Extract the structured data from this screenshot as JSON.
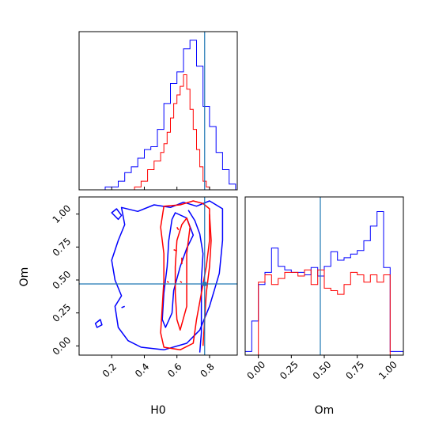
{
  "colors": {
    "series_a": "#0000ff",
    "series_b": "#ff0000",
    "truth": "#1f77b4",
    "frame": "#000000"
  },
  "chart_data": [
    {
      "type": "histogram",
      "panel": "top-left",
      "xlim": [
        0.0,
        0.97
      ],
      "ylim": [
        0,
        55
      ],
      "truth_x": 0.77,
      "series": [
        {
          "color_key": "series_a",
          "bin_edges": [
            0.16,
            0.2,
            0.24,
            0.28,
            0.32,
            0.36,
            0.4,
            0.44,
            0.48,
            0.52,
            0.56,
            0.6,
            0.64,
            0.68,
            0.72,
            0.76,
            0.8,
            0.84,
            0.88,
            0.92,
            0.96
          ],
          "counts": [
            1,
            1,
            3,
            6,
            8,
            11,
            14,
            15,
            21,
            30,
            37,
            41,
            49,
            52,
            43,
            29,
            22,
            13,
            7,
            2
          ]
        },
        {
          "color_key": "series_b",
          "bin_edges": [
            0.34,
            0.38,
            0.42,
            0.46,
            0.5,
            0.52,
            0.54,
            0.56,
            0.58,
            0.6,
            0.62,
            0.64,
            0.66,
            0.68,
            0.7,
            0.72,
            0.74,
            0.76,
            0.78,
            0.8,
            0.82,
            0.84
          ],
          "counts": [
            1,
            3,
            7,
            10,
            13,
            16,
            20,
            25,
            30,
            33,
            36,
            40,
            35,
            28,
            21,
            14,
            8,
            3,
            1,
            0,
            0
          ]
        }
      ]
    },
    {
      "type": "contour",
      "panel": "bottom-left",
      "xlabel": "H0",
      "ylabel": "Om",
      "xlim": [
        0.0,
        0.97
      ],
      "ylim": [
        -0.07,
        1.13
      ],
      "xticks": [
        0.2,
        0.4,
        0.6,
        0.8
      ],
      "xtick_labels": [
        "0.2",
        "0.4",
        "0.6",
        "0.8"
      ],
      "yticks": [
        0.0,
        0.25,
        0.5,
        0.75,
        1.0
      ],
      "ytick_labels": [
        "0.00",
        "0.25",
        "0.50",
        "0.75",
        "1.00"
      ],
      "truth": [
        0.77,
        0.47
      ],
      "contours": [
        {
          "color_key": "series_a",
          "closed": true,
          "points": [
            [
              0.26,
              1.05
            ],
            [
              0.36,
              1.02
            ],
            [
              0.46,
              1.07
            ],
            [
              0.56,
              1.05
            ],
            [
              0.64,
              1.09
            ],
            [
              0.72,
              1.06
            ],
            [
              0.8,
              1.1
            ],
            [
              0.88,
              1.04
            ],
            [
              0.88,
              0.8
            ],
            [
              0.86,
              0.55
            ],
            [
              0.8,
              0.3
            ],
            [
              0.74,
              0.12
            ],
            [
              0.66,
              0.02
            ],
            [
              0.52,
              -0.03
            ],
            [
              0.38,
              -0.01
            ],
            [
              0.3,
              0.04
            ],
            [
              0.24,
              0.14
            ],
            [
              0.22,
              0.3
            ],
            [
              0.26,
              0.38
            ],
            [
              0.22,
              0.5
            ],
            [
              0.2,
              0.65
            ],
            [
              0.24,
              0.8
            ],
            [
              0.28,
              0.92
            ]
          ]
        },
        {
          "color_key": "series_a",
          "closed": true,
          "points": [
            [
              0.59,
              1.01
            ],
            [
              0.66,
              0.97
            ],
            [
              0.7,
              0.84
            ],
            [
              0.66,
              0.74
            ],
            [
              0.62,
              0.6
            ],
            [
              0.58,
              0.42
            ],
            [
              0.57,
              0.25
            ],
            [
              0.53,
              0.14
            ],
            [
              0.51,
              0.2
            ],
            [
              0.52,
              0.4
            ],
            [
              0.54,
              0.6
            ],
            [
              0.55,
              0.8
            ],
            [
              0.57,
              0.96
            ]
          ]
        },
        {
          "color_key": "series_a",
          "closed": false,
          "points": [
            [
              0.74,
              -0.05
            ],
            [
              0.75,
              0.1
            ],
            [
              0.75,
              0.3
            ],
            [
              0.75,
              0.5
            ],
            [
              0.76,
              0.7
            ],
            [
              0.74,
              0.85
            ],
            [
              0.71,
              0.95
            ],
            [
              0.67,
              1.03
            ]
          ]
        },
        {
          "color_key": "series_a",
          "closed": true,
          "points": [
            [
              0.2,
              1.01
            ],
            [
              0.24,
              0.96
            ],
            [
              0.26,
              0.99
            ],
            [
              0.23,
              1.04
            ]
          ]
        },
        {
          "color_key": "series_a",
          "closed": true,
          "points": [
            [
              0.1,
              0.17
            ],
            [
              0.13,
              0.2
            ],
            [
              0.14,
              0.16
            ],
            [
              0.11,
              0.14
            ]
          ]
        },
        {
          "color_key": "series_a",
          "closed": false,
          "points": [
            [
              0.26,
              0.29
            ],
            [
              0.28,
              0.3
            ]
          ]
        },
        {
          "color_key": "series_b",
          "closed": true,
          "points": [
            [
              0.52,
              1.06
            ],
            [
              0.62,
              1.07
            ],
            [
              0.7,
              1.1
            ],
            [
              0.76,
              1.08
            ],
            [
              0.8,
              1.04
            ],
            [
              0.8,
              0.8
            ],
            [
              0.78,
              0.6
            ],
            [
              0.75,
              0.4
            ],
            [
              0.72,
              0.2
            ],
            [
              0.7,
              0.02
            ],
            [
              0.62,
              -0.03
            ],
            [
              0.52,
              -0.01
            ],
            [
              0.5,
              0.1
            ],
            [
              0.51,
              0.3
            ],
            [
              0.52,
              0.5
            ],
            [
              0.52,
              0.7
            ],
            [
              0.5,
              0.9
            ]
          ]
        },
        {
          "color_key": "series_b",
          "closed": true,
          "points": [
            [
              0.63,
              0.92
            ],
            [
              0.66,
              0.97
            ],
            [
              0.68,
              0.9
            ],
            [
              0.66,
              0.7
            ],
            [
              0.66,
              0.5
            ],
            [
              0.66,
              0.3
            ],
            [
              0.62,
              0.12
            ],
            [
              0.6,
              0.2
            ],
            [
              0.59,
              0.4
            ],
            [
              0.59,
              0.6
            ],
            [
              0.6,
              0.8
            ]
          ]
        },
        {
          "color_key": "series_b",
          "closed": false,
          "points": [
            [
              0.76,
              0.0
            ],
            [
              0.77,
              0.2
            ],
            [
              0.78,
              0.4
            ],
            [
              0.8,
              0.6
            ],
            [
              0.81,
              0.8
            ],
            [
              0.8,
              1.0
            ]
          ]
        },
        {
          "color_key": "series_b",
          "closed": false,
          "points": [
            [
              0.58,
              0.73
            ],
            [
              0.6,
              0.72
            ]
          ]
        },
        {
          "color_key": "series_b",
          "closed": false,
          "points": [
            [
              0.54,
              0.49
            ],
            [
              0.55,
              0.48
            ]
          ]
        },
        {
          "color_key": "series_b",
          "closed": false,
          "points": [
            [
              0.62,
              0.49
            ],
            [
              0.63,
              0.48
            ]
          ]
        },
        {
          "color_key": "series_b",
          "closed": false,
          "points": [
            [
              0.6,
              0.9
            ],
            [
              0.61,
              0.88
            ]
          ]
        },
        {
          "color_key": "series_b",
          "closed": false,
          "points": [
            [
              0.63,
              0.67
            ],
            [
              0.63,
              0.62
            ]
          ]
        }
      ]
    },
    {
      "type": "histogram",
      "panel": "bottom-right",
      "xlabel": "Om",
      "xlim": [
        -0.1,
        1.1
      ],
      "ylim": [
        0,
        130
      ],
      "xticks": [
        0.0,
        0.25,
        0.5,
        0.75,
        1.0
      ],
      "xtick_labels": [
        "0.00",
        "0.25",
        "0.50",
        "0.75",
        "1.00"
      ],
      "truth_x": 0.47,
      "series": [
        {
          "color_key": "series_a",
          "bin_edges": [
            -0.1,
            -0.05,
            0.0,
            0.05,
            0.1,
            0.15,
            0.2,
            0.25,
            0.3,
            0.35,
            0.4,
            0.45,
            0.5,
            0.55,
            0.6,
            0.65,
            0.7,
            0.75,
            0.8,
            0.85,
            0.9,
            0.95,
            1.0,
            1.05,
            1.1
          ],
          "counts": [
            3,
            28,
            58,
            68,
            88,
            73,
            70,
            68,
            68,
            66,
            72,
            65,
            73,
            85,
            78,
            80,
            83,
            86,
            94,
            106,
            118,
            72,
            3,
            3
          ]
        },
        {
          "color_key": "series_b",
          "bin_edges": [
            0.0,
            0.05,
            0.1,
            0.15,
            0.2,
            0.25,
            0.3,
            0.35,
            0.4,
            0.45,
            0.5,
            0.55,
            0.6,
            0.65,
            0.7,
            0.75,
            0.8,
            0.85,
            0.9,
            0.95,
            1.0
          ],
          "counts": [
            60,
            66,
            58,
            63,
            68,
            68,
            65,
            70,
            58,
            70,
            55,
            53,
            50,
            58,
            68,
            66,
            60,
            66,
            60,
            66
          ]
        }
      ]
    }
  ]
}
